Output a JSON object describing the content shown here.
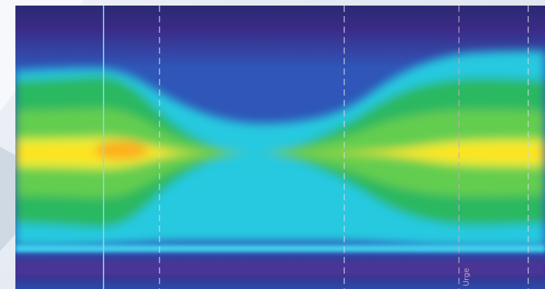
{
  "chart_data": {
    "type": "heatmap",
    "title": "",
    "xlabel": "",
    "ylabel": "",
    "colorscale": [
      "#3b2a86",
      "#2f56b8",
      "#1f8fd6",
      "#25c9e0",
      "#2bb860",
      "#6fd04e",
      "#e6ee3a",
      "#ffe21a",
      "#ffa21c"
    ],
    "intensity_profile": {
      "note_columns_are_fraction_of_width": false,
      "columns": [
        {
          "x_fraction": 0.0,
          "core_half_width": 0.055,
          "core_peak": 0.92,
          "green_half_width": 0.165,
          "cyan_top": 0.23,
          "cyan_bottom": 0.85
        },
        {
          "x_fraction": 0.1,
          "core_half_width": 0.055,
          "core_peak": 0.95,
          "green_half_width": 0.17,
          "cyan_top": 0.22,
          "cyan_bottom": 0.85
        },
        {
          "x_fraction": 0.2,
          "core_half_width": 0.06,
          "core_peak": 1.0,
          "green_half_width": 0.18,
          "cyan_top": 0.22,
          "cyan_bottom": 0.84
        },
        {
          "x_fraction": 0.3,
          "core_half_width": 0.01,
          "core_peak": 0.3,
          "green_half_width": 0.06,
          "cyan_top": 0.34,
          "cyan_bottom": 0.83
        },
        {
          "x_fraction": 0.4,
          "core_half_width": 0.0,
          "core_peak": 0.0,
          "green_half_width": 0.0,
          "cyan_top": 0.41,
          "cyan_bottom": 0.83
        },
        {
          "x_fraction": 0.5,
          "core_half_width": 0.0,
          "core_peak": 0.0,
          "green_half_width": 0.0,
          "cyan_top": 0.42,
          "cyan_bottom": 0.83
        },
        {
          "x_fraction": 0.62,
          "core_half_width": 0.01,
          "core_peak": 0.2,
          "green_half_width": 0.06,
          "cyan_top": 0.38,
          "cyan_bottom": 0.83
        },
        {
          "x_fraction": 0.72,
          "core_half_width": 0.02,
          "core_peak": 0.55,
          "green_half_width": 0.14,
          "cyan_top": 0.24,
          "cyan_bottom": 0.84
        },
        {
          "x_fraction": 0.82,
          "core_half_width": 0.05,
          "core_peak": 0.85,
          "green_half_width": 0.17,
          "cyan_top": 0.17,
          "cyan_bottom": 0.85
        },
        {
          "x_fraction": 0.92,
          "core_half_width": 0.055,
          "core_peak": 0.9,
          "green_half_width": 0.17,
          "cyan_top": 0.16,
          "cyan_bottom": 0.85
        },
        {
          "x_fraction": 1.0,
          "core_half_width": 0.055,
          "core_peak": 0.88,
          "green_half_width": 0.165,
          "cyan_top": 0.16,
          "cyan_bottom": 0.85
        }
      ]
    },
    "markers": [
      {
        "label": "",
        "style": "solid",
        "color": "#8fd8e6"
      },
      {
        "label": "",
        "style": "dashed",
        "color": "#cfd6e2"
      },
      {
        "label": "",
        "style": "dashed",
        "color": "#cfd6e2"
      },
      {
        "label": "Urge",
        "style": "dashed",
        "color": "#c9a3c8"
      },
      {
        "label": "",
        "style": "dashed",
        "color": "#cfd6e2"
      }
    ],
    "grid": false,
    "legend": "none"
  }
}
